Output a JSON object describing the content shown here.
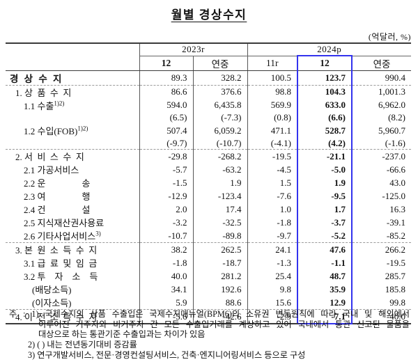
{
  "title": "월별 경상수지",
  "unit_label": "(억달러, %)",
  "colors": {
    "highlight_blue": "#3333ee"
  },
  "table": {
    "col_groups": [
      {
        "label": "2023r",
        "span": 2
      },
      {
        "label": "2024p",
        "span": 3
      }
    ],
    "col_headers": [
      "12",
      "연중",
      "11r",
      "12",
      "연중"
    ],
    "highlighted_column": "2024p 12",
    "rows": [
      {
        "label": "경  상  수  지",
        "bold": true,
        "indent": 0,
        "values": [
          "89.3",
          "328.2",
          "100.5",
          "123.7",
          "990.4"
        ],
        "sep_after": true
      },
      {
        "label": "1. 상  품  수  지",
        "indent": 1,
        "values": [
          "86.6",
          "376.6",
          "98.8",
          "104.3",
          "1,001.3"
        ]
      },
      {
        "label": "1.1 수출",
        "sup": "1)2)",
        "indent": 2,
        "values": [
          "594.0",
          "6,435.8",
          "569.9",
          "633.0",
          "6,962.0"
        ]
      },
      {
        "label": "",
        "indent": 2,
        "values": [
          "(6.5)",
          "(-7.3)",
          "(0.8)",
          "(6.6)",
          "(8.2)"
        ]
      },
      {
        "label": "1.2 수입(FOB)",
        "sup": "1)2)",
        "indent": 2,
        "values": [
          "507.4",
          "6,059.2",
          "471.1",
          "528.7",
          "5,960.7"
        ]
      },
      {
        "label": "",
        "indent": 2,
        "values": [
          "(-9.7)",
          "(-10.7)",
          "(-4.1)",
          "(4.2)",
          "(-1.6)"
        ],
        "sep_after": true
      },
      {
        "label": "2. 서  비  스  수  지",
        "indent": 1,
        "values": [
          "-29.8",
          "-268.2",
          "-19.5",
          "-21.1",
          "-237.0"
        ]
      },
      {
        "label": "2.1 가공서비스",
        "indent": 2,
        "values": [
          "-5.7",
          "-63.2",
          "-4.5",
          "-5.0",
          "-66.6"
        ]
      },
      {
        "label": "2.2 운　　　　송",
        "indent": 2,
        "values": [
          "-1.5",
          "1.9",
          "1.5",
          "1.9",
          "43.0"
        ]
      },
      {
        "label": "2.3 여　　　　행",
        "indent": 2,
        "values": [
          "-12.9",
          "-123.4",
          "-7.6",
          "-9.5",
          "-125.0"
        ]
      },
      {
        "label": "2.4 건　　　　설",
        "indent": 2,
        "values": [
          "2.0",
          "17.4",
          "1.0",
          "1.7",
          "16.3"
        ]
      },
      {
        "label": "2.5 지식재산권사용료",
        "indent": 2,
        "values": [
          "-3.2",
          "-32.5",
          "-1.8",
          "-3.7",
          "-39.1"
        ]
      },
      {
        "label": "2.6 기타사업서비스",
        "sup": "3)",
        "indent": 2,
        "values": [
          "-10.7",
          "-89.8",
          "-9.7",
          "-5.2",
          "-85.2"
        ],
        "sep_after": true
      },
      {
        "label": "3. 본  원  소  득  수  지",
        "indent": 1,
        "values": [
          "38.2",
          "262.5",
          "24.1",
          "47.6",
          "266.2"
        ]
      },
      {
        "label": "3.1 급  료  및  임  금",
        "indent": 2,
        "values": [
          "-1.8",
          "-18.7",
          "-1.3",
          "-1.1",
          "-19.5"
        ]
      },
      {
        "label": "3.2 투　자　소　득",
        "indent": 2,
        "values": [
          "40.0",
          "281.2",
          "25.4",
          "48.7",
          "285.7"
        ]
      },
      {
        "label": "(배당소득)",
        "indent": 3,
        "values": [
          "34.1",
          "192.6",
          "9.8",
          "35.9",
          "185.8"
        ]
      },
      {
        "label": "(이자소득)",
        "indent": 3,
        "values": [
          "5.9",
          "88.6",
          "15.6",
          "12.9",
          "99.8"
        ],
        "sep_after": true
      },
      {
        "label": "4. 이  전  소  득  수  지",
        "indent": 1,
        "values": [
          "-5.6",
          "-42.6",
          "-2.9",
          "-7.1",
          "-40.0"
        ]
      }
    ]
  },
  "footnotes": [
    {
      "text": "주 : 1) 국제수지의 상품 수출입은 국제수지매뉴얼(BPM6)의 소유권 변동원칙에 따라 국내 및 해외에서"
    },
    {
      "text": "이루어진 거주자와 비거주자 간 모든 수출입거래를 계상하고 있어 국내에서 통관 신고된 물품을"
    },
    {
      "text": "대상으로 하는 통관기준 수출입과는 차이가 있음"
    },
    {
      "text": "2) (  ) 내는 전년동기대비 증감률"
    },
    {
      "text": "3) 연구개발서비스, 전문·경영컨설팅서비스, 건축·엔지니어링서비스 등으로 구성"
    }
  ]
}
